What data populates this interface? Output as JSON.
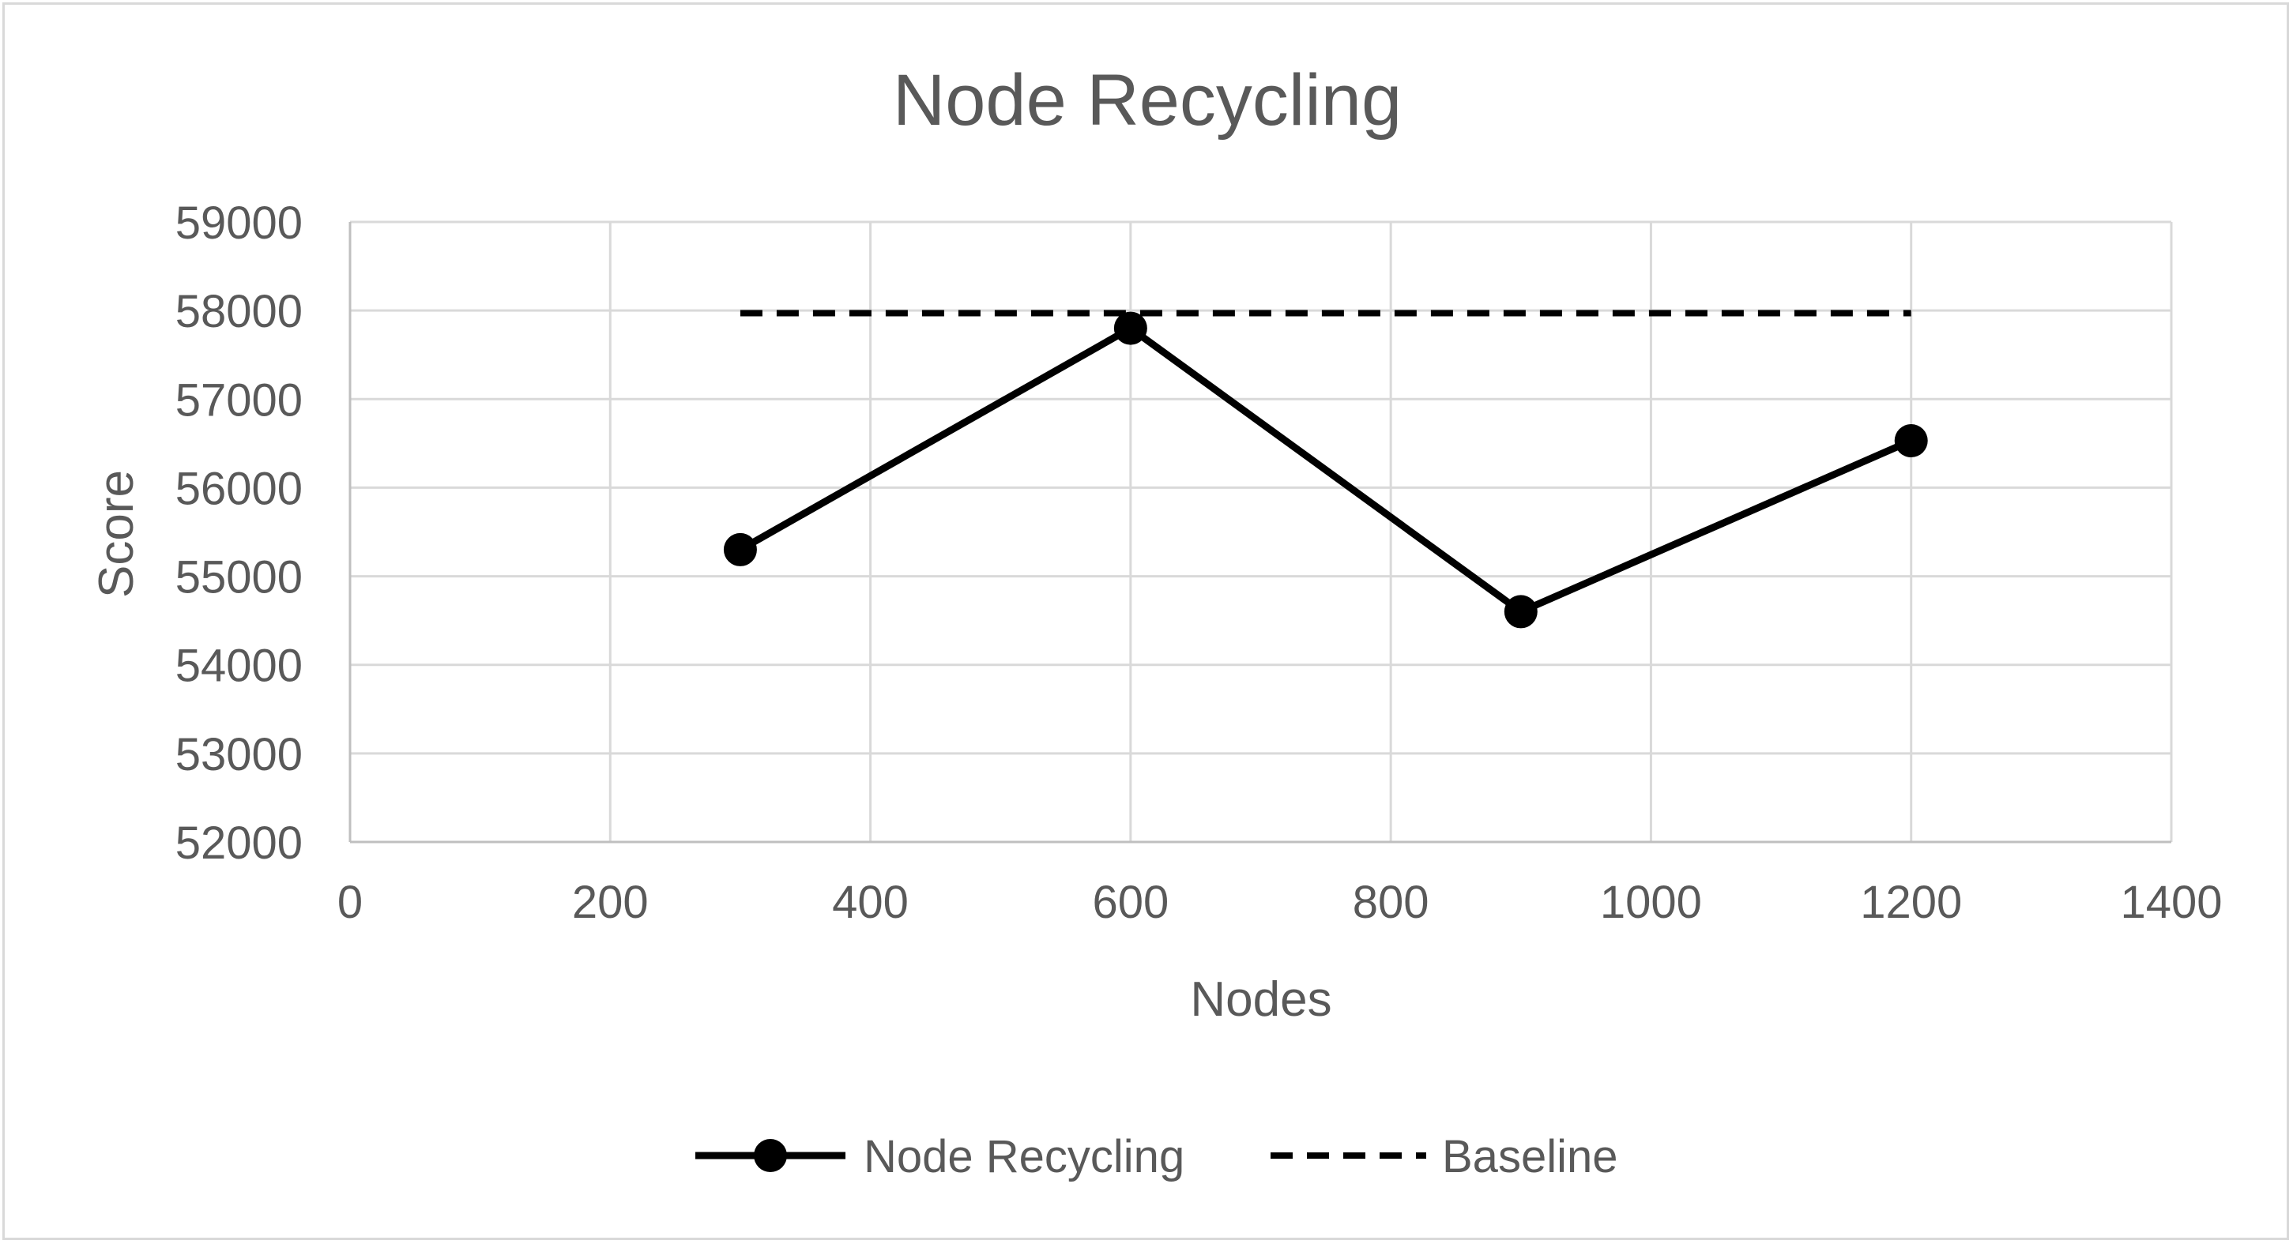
{
  "chart_data": {
    "type": "line",
    "title": "Node Recycling",
    "xlabel": "Nodes",
    "ylabel": "Score",
    "xlim": [
      0,
      1400
    ],
    "ylim": [
      52000,
      59000
    ],
    "x_ticks": [
      0,
      200,
      400,
      600,
      800,
      1000,
      1200,
      1400
    ],
    "y_ticks": [
      52000,
      53000,
      54000,
      55000,
      56000,
      57000,
      58000,
      59000
    ],
    "grid": true,
    "legend_position": "bottom",
    "series": [
      {
        "name": "Node Recycling",
        "style": "solid-with-markers",
        "color": "#000000",
        "x": [
          300,
          600,
          900,
          1200
        ],
        "y": [
          55300,
          57800,
          54600,
          56530
        ]
      },
      {
        "name": "Baseline",
        "style": "dashed",
        "color": "#000000",
        "x": [
          300,
          1200
        ],
        "y": [
          57970,
          57970
        ]
      }
    ]
  }
}
